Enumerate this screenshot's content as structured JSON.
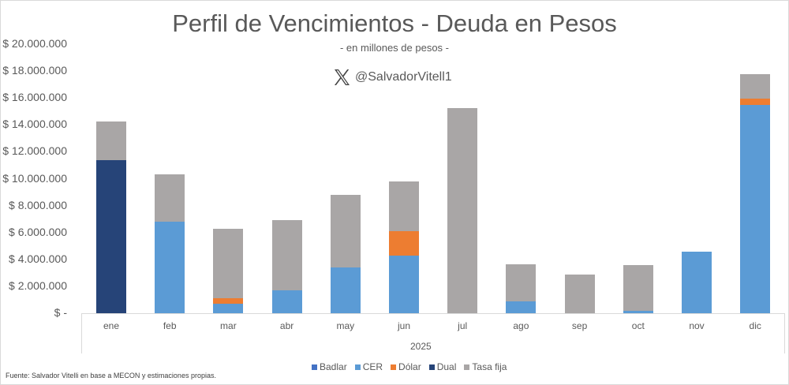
{
  "header": {
    "title": "Perfil de Vencimientos - Deuda en Pesos",
    "subtitle": "- en millones de pesos -",
    "handle": "@SalvadorVitell1",
    "handle_icon": "x-logo-icon"
  },
  "y_axis": {
    "ticks": [
      "$ 20.000.000",
      "$ 18.000.000",
      "$ 16.000.000",
      "$ 14.000.000",
      "$ 12.000.000",
      "$ 10.000.000",
      "$ 8.000.000",
      "$ 6.000.000",
      "$ 4.000.000",
      "$ 2.000.000",
      "$ -"
    ]
  },
  "x_axis": {
    "categories": [
      "ene",
      "feb",
      "mar",
      "abr",
      "may",
      "jun",
      "jul",
      "ago",
      "sep",
      "oct",
      "nov",
      "dic"
    ],
    "group_label": "2025"
  },
  "legend": [
    {
      "name": "Badlar",
      "color": "#4472C4"
    },
    {
      "name": "CER",
      "color": "#5B9BD5"
    },
    {
      "name": "Dólar",
      "color": "#ED7D31"
    },
    {
      "name": "Dual",
      "color": "#264478"
    },
    {
      "name": "Tasa fija",
      "color": "#A9A6A6"
    }
  ],
  "source": "Fuente:  Salvador Vitelli en base a MECON  y estimaciones propias.",
  "chart_data": {
    "type": "bar",
    "stacked": true,
    "title": "Perfil de Vencimientos - Deuda en Pesos",
    "subtitle": "- en millones de pesos -",
    "xlabel": "2025",
    "ylabel": "",
    "ylim": [
      0,
      20000000
    ],
    "grid": false,
    "legend_position": "bottom",
    "categories": [
      "ene",
      "feb",
      "mar",
      "abr",
      "may",
      "jun",
      "jul",
      "ago",
      "sep",
      "oct",
      "nov",
      "dic"
    ],
    "series": [
      {
        "name": "Badlar",
        "color": "#4472C4",
        "values": [
          0,
          0,
          0,
          0,
          0,
          0,
          0,
          0,
          0,
          0,
          0,
          0
        ]
      },
      {
        "name": "CER",
        "color": "#5B9BD5",
        "values": [
          0,
          6800000,
          700000,
          1700000,
          3400000,
          4300000,
          0,
          900000,
          0,
          180000,
          4580000,
          15480000
        ]
      },
      {
        "name": "Dólar",
        "color": "#ED7D31",
        "values": [
          0,
          0,
          410000,
          0,
          0,
          1800000,
          0,
          0,
          0,
          0,
          0,
          470000
        ]
      },
      {
        "name": "Dual",
        "color": "#264478",
        "values": [
          11380000,
          0,
          0,
          0,
          0,
          0,
          0,
          0,
          0,
          0,
          0,
          0
        ]
      },
      {
        "name": "Tasa fija",
        "color": "#A9A6A6",
        "values": [
          2870000,
          3520000,
          5170000,
          5250000,
          5420000,
          3680000,
          15260000,
          2750000,
          2850000,
          3420000,
          0,
          1820000
        ]
      }
    ]
  }
}
